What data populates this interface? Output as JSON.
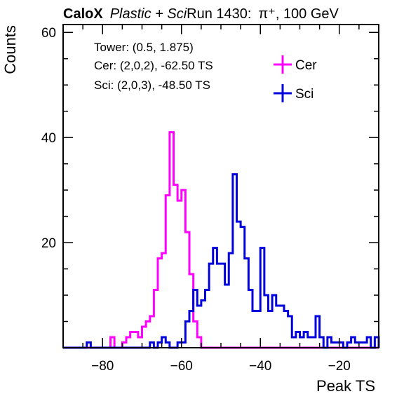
{
  "header": {
    "brand": "CaloX",
    "material": "Plastic + Sci",
    "run": "Run 1430:",
    "particle": "π⁺, 100 GeV"
  },
  "annotations": [
    "Tower: (0.5, 1.875)",
    "Cer: (2,0,2), -62.50 TS",
    "Sci: (2,0,3), -48.50 TS"
  ],
  "chart_data": {
    "type": "histogram",
    "xlabel": "Peak TS",
    "ylabel": "Counts",
    "xlim": [
      -90,
      -10
    ],
    "ylim": [
      0,
      61.5
    ],
    "bin_width": 1,
    "x_ticks": [
      -80,
      -60,
      -40,
      -20
    ],
    "y_ticks": [
      20,
      40,
      60
    ],
    "legend_position": "top-right",
    "series": [
      {
        "name": "Cer",
        "color": "#ff00ff",
        "bin_low_edges": [
          -84,
          -83,
          -82,
          -81,
          -80,
          -79,
          -78,
          -77,
          -76,
          -75,
          -74,
          -73,
          -72,
          -71,
          -70,
          -69,
          -68,
          -67,
          -66,
          -65,
          -64,
          -63,
          -62,
          -61,
          -60,
          -59,
          -58,
          -57,
          -56,
          -55,
          -54,
          -53,
          -52,
          -51,
          -50,
          -49,
          -48,
          -47,
          -46,
          -45,
          -44,
          -43,
          -42,
          -41,
          -40,
          -39,
          -38,
          -37,
          -36,
          -35,
          -34,
          -33,
          -32,
          -31,
          -30,
          -29,
          -28,
          -27,
          -26,
          -25,
          -24,
          -23,
          -22,
          -21,
          -20,
          -19,
          -18,
          -17,
          -16,
          -15,
          -14,
          -13,
          -12,
          -11
        ],
        "counts": [
          0,
          0,
          0,
          0,
          0,
          0,
          2,
          0,
          0,
          1,
          2,
          3,
          3,
          2,
          4,
          5,
          6,
          11,
          17,
          18,
          29,
          41,
          31,
          28,
          30,
          22,
          14,
          5,
          2,
          0,
          0,
          0,
          0,
          0,
          0,
          0,
          0,
          0,
          0,
          0,
          0,
          0,
          0,
          0,
          0,
          0,
          0,
          0,
          0,
          0,
          0,
          0,
          0,
          0,
          0,
          0,
          0,
          0,
          0,
          0,
          0,
          0,
          0,
          0,
          0,
          0,
          0,
          0,
          0,
          0,
          0,
          0,
          0,
          0
        ]
      },
      {
        "name": "Sci",
        "color": "#0000dd",
        "bin_low_edges": [
          -84,
          -83,
          -82,
          -81,
          -80,
          -79,
          -78,
          -77,
          -76,
          -75,
          -74,
          -73,
          -72,
          -71,
          -70,
          -69,
          -68,
          -67,
          -66,
          -65,
          -64,
          -63,
          -62,
          -61,
          -60,
          -59,
          -58,
          -57,
          -56,
          -55,
          -54,
          -53,
          -52,
          -51,
          -50,
          -49,
          -48,
          -47,
          -46,
          -45,
          -44,
          -43,
          -42,
          -41,
          -40,
          -39,
          -38,
          -37,
          -36,
          -35,
          -34,
          -33,
          -32,
          -31,
          -30,
          -29,
          -28,
          -27,
          -26,
          -25,
          -24,
          -23,
          -22,
          -21,
          -20,
          -19,
          -18,
          -17,
          -16,
          -15,
          -14,
          -13,
          -12,
          -11
        ],
        "counts": [
          1,
          0,
          0,
          0,
          0,
          0,
          0,
          0,
          0,
          0,
          0,
          0,
          0,
          0,
          0,
          0,
          1,
          0,
          1,
          2,
          1,
          0,
          0,
          1,
          1,
          5,
          7,
          11,
          8,
          9,
          11,
          16,
          19,
          16,
          16,
          12,
          18,
          33,
          24,
          23,
          17,
          11,
          7,
          7,
          19,
          10,
          7,
          10,
          8,
          8,
          7,
          6,
          2,
          3,
          2,
          3,
          2,
          2,
          6,
          2,
          0,
          2,
          1,
          1,
          1,
          0,
          1,
          2,
          1,
          1,
          1,
          2,
          0,
          2
        ]
      }
    ]
  }
}
